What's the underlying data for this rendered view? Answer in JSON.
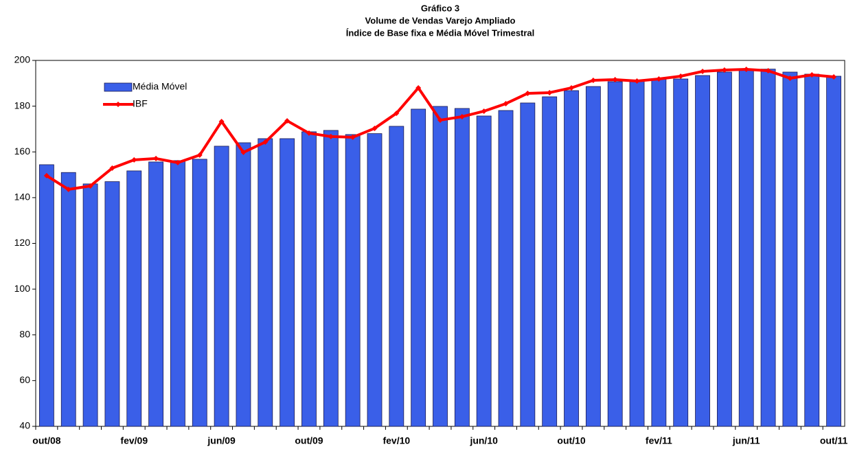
{
  "chart_data": {
    "type": "bar_line",
    "title": [
      "Gráfico 3",
      "Volume de Vendas Varejo Ampliado",
      "Índice de Base fixa e Média Móvel Trimestral"
    ],
    "categories": [
      "out/08",
      null,
      null,
      null,
      "fev/09",
      null,
      null,
      null,
      "jun/09",
      null,
      null,
      null,
      "out/09",
      null,
      null,
      null,
      "fev/10",
      null,
      null,
      null,
      "jun/10",
      null,
      null,
      null,
      "out/10",
      null,
      null,
      null,
      "fev/11",
      null,
      null,
      null,
      "jun/11",
      null,
      null,
      null,
      "out/11"
    ],
    "series": [
      {
        "name": "Média Móvel",
        "type": "bar",
        "color": "#3a5fe8",
        "values": [
          154.4,
          151,
          146,
          147,
          151.7,
          155.6,
          156.2,
          156.8,
          162.5,
          164,
          165.8,
          165.8,
          168.8,
          169.4,
          167.6,
          168,
          171.2,
          178.7,
          179.9,
          179,
          175.7,
          178.1,
          181.4,
          184.1,
          186.8,
          188.6,
          190.7,
          191.3,
          191.9,
          191.9,
          193.4,
          194.9,
          196.2,
          196.2,
          194.9,
          194,
          193.1
        ]
      },
      {
        "name": "IBF",
        "type": "line",
        "color": "#ff0000",
        "values": [
          149.6,
          143.6,
          145.1,
          152.9,
          156.5,
          157.1,
          155.3,
          158.6,
          173.3,
          159.8,
          164.3,
          173.6,
          168.2,
          166.7,
          166.4,
          170.3,
          176.9,
          188,
          173.9,
          175.4,
          177.8,
          181.1,
          185.6,
          185.9,
          188,
          191.3,
          191.6,
          191,
          191.9,
          193.1,
          195.2,
          195.8,
          196.1,
          195.5,
          192.2,
          193.7,
          192.8
        ]
      }
    ],
    "ylim": [
      40,
      200
    ],
    "yticks": [
      40,
      60,
      80,
      100,
      120,
      140,
      160,
      180,
      200
    ],
    "grid": false
  }
}
